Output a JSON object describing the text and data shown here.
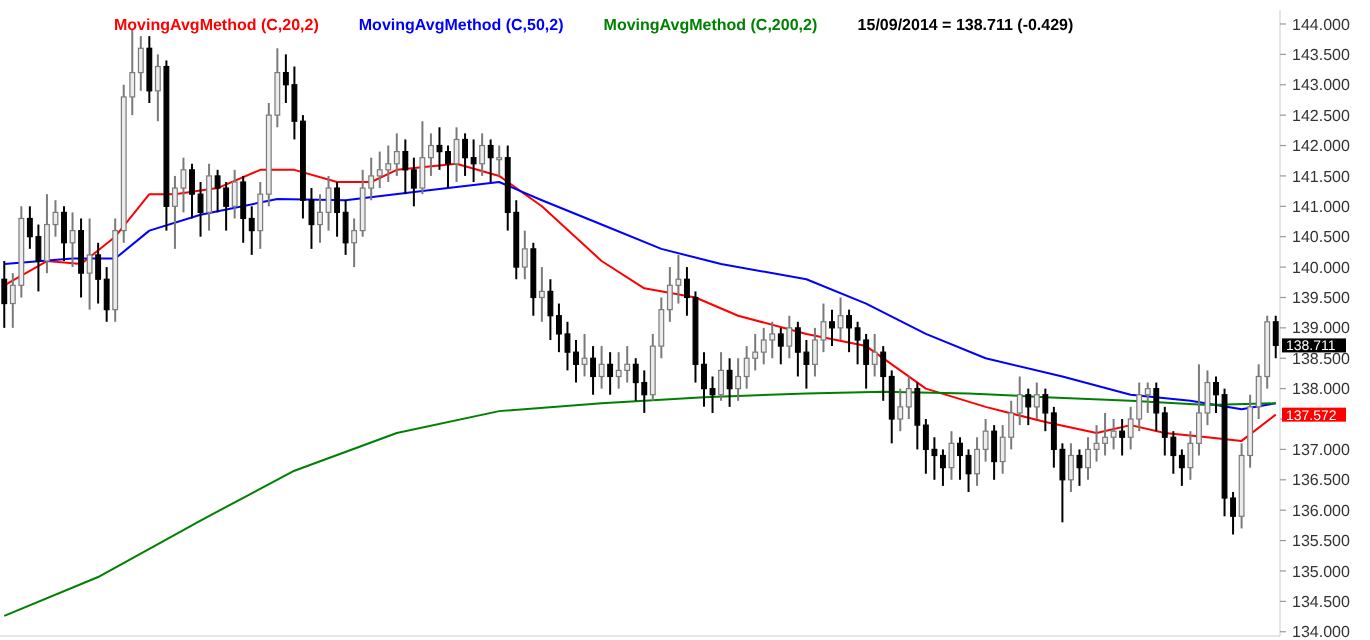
{
  "chart_data": {
    "type": "candlestick",
    "legend": "top",
    "tick_labels": "y",
    "grid": false,
    "ylim": [
      133.93,
      144.23
    ],
    "yticks": [
      {
        "value": 134,
        "label": "134.000"
      },
      {
        "value": 134.5,
        "label": "134.500"
      },
      {
        "value": 135,
        "label": "135.000"
      },
      {
        "value": 135.5,
        "label": "135.500"
      },
      {
        "value": 136,
        "label": "136.000"
      },
      {
        "value": 136.5,
        "label": "136.500"
      },
      {
        "value": 137,
        "label": "137.000"
      },
      {
        "value": 137.5,
        "label": null
      },
      {
        "value": 138,
        "label": "138.000"
      },
      {
        "value": 138.5,
        "label": "138.500"
      },
      {
        "value": 139,
        "label": "139.000"
      },
      {
        "value": 139.5,
        "label": "139.500"
      },
      {
        "value": 140,
        "label": "140.000"
      },
      {
        "value": 140.5,
        "label": "140.500"
      },
      {
        "value": 141,
        "label": "141.000"
      },
      {
        "value": 141.5,
        "label": "141.500"
      },
      {
        "value": 142,
        "label": "142.000"
      },
      {
        "value": 142.5,
        "label": "142.500"
      },
      {
        "value": 143,
        "label": "143.000"
      },
      {
        "value": 143.5,
        "label": "143.500"
      },
      {
        "value": 144,
        "label": "144.000"
      }
    ],
    "annotations": [
      "15/09/2014 = 138.711 (-0.429)",
      "138.711",
      "137.572"
    ],
    "categories": [
      null,
      null,
      null,
      null,
      null,
      null,
      null,
      null,
      null,
      null,
      null,
      null,
      null,
      null,
      null,
      null,
      null,
      null,
      null,
      null,
      null,
      null,
      null,
      null,
      null,
      null,
      null,
      null,
      null,
      null,
      null,
      null,
      null,
      null,
      null,
      null,
      null,
      null,
      null,
      null,
      null,
      null,
      null,
      null,
      null,
      null,
      null,
      null,
      null,
      null,
      null,
      null,
      null,
      null,
      null,
      null,
      null,
      null,
      null,
      null,
      null,
      null,
      null,
      null,
      null,
      null,
      null,
      null,
      null,
      null,
      null,
      null,
      null,
      null,
      null,
      null,
      null,
      null,
      null,
      null,
      null,
      null,
      null,
      null,
      null,
      null,
      null,
      null,
      null,
      null,
      null,
      null,
      null,
      null,
      null,
      null,
      null,
      null,
      null,
      null,
      null,
      null,
      null,
      null,
      null,
      null,
      null,
      null,
      null,
      null,
      null,
      null,
      null,
      null,
      null,
      null,
      null,
      null,
      null,
      null,
      null,
      null,
      null,
      null,
      null,
      null,
      null,
      null,
      null,
      null,
      null,
      null,
      null,
      null,
      null,
      null,
      null,
      null,
      null,
      null,
      null,
      null,
      null,
      null,
      null,
      null,
      null,
      null,
      null,
      null
    ],
    "ohlc": [
      [
        139.8,
        140.1,
        139.0,
        139.4
      ],
      [
        139.4,
        139.9,
        139.0,
        139.7
      ],
      [
        139.7,
        141.0,
        139.5,
        140.8
      ],
      [
        140.8,
        141.0,
        140.3,
        140.5
      ],
      [
        140.5,
        140.7,
        139.6,
        140.1
      ],
      [
        140.1,
        141.2,
        139.9,
        140.7
      ],
      [
        140.7,
        141.1,
        140.5,
        140.9
      ],
      [
        140.9,
        141.0,
        140.1,
        140.4
      ],
      [
        140.4,
        140.9,
        140.0,
        140.6
      ],
      [
        140.6,
        140.8,
        139.5,
        139.9
      ],
      [
        139.9,
        140.8,
        139.3,
        140.2
      ],
      [
        140.2,
        140.4,
        139.4,
        139.8
      ],
      [
        139.8,
        140.0,
        139.1,
        139.3
      ],
      [
        139.3,
        140.8,
        139.1,
        140.6
      ],
      [
        140.6,
        143.0,
        140.4,
        142.8
      ],
      [
        142.8,
        143.9,
        142.5,
        143.2
      ],
      [
        143.2,
        143.8,
        142.9,
        143.6
      ],
      [
        143.6,
        143.8,
        142.7,
        142.9
      ],
      [
        142.9,
        143.5,
        142.4,
        143.3
      ],
      [
        143.3,
        143.4,
        140.6,
        141.0
      ],
      [
        141.0,
        141.5,
        140.3,
        141.3
      ],
      [
        141.3,
        141.8,
        140.9,
        141.6
      ],
      [
        141.6,
        141.7,
        140.8,
        141.2
      ],
      [
        141.2,
        141.4,
        140.5,
        140.9
      ],
      [
        140.9,
        141.7,
        140.6,
        141.5
      ],
      [
        141.5,
        141.6,
        140.9,
        141.3
      ],
      [
        141.3,
        141.4,
        140.6,
        141.0
      ],
      [
        141.0,
        141.6,
        140.8,
        141.4
      ],
      [
        141.4,
        141.5,
        140.4,
        140.8
      ],
      [
        140.8,
        141.0,
        140.2,
        140.6
      ],
      [
        140.6,
        141.4,
        140.3,
        141.2
      ],
      [
        141.2,
        142.7,
        141.0,
        142.5
      ],
      [
        142.5,
        143.6,
        142.3,
        143.2
      ],
      [
        143.2,
        143.5,
        142.7,
        143.0
      ],
      [
        143.0,
        143.3,
        142.1,
        142.4
      ],
      [
        142.4,
        142.5,
        140.8,
        141.1
      ],
      [
        141.1,
        141.3,
        140.3,
        140.7
      ],
      [
        140.7,
        141.2,
        140.4,
        140.9
      ],
      [
        140.9,
        141.5,
        140.6,
        141.3
      ],
      [
        141.3,
        141.4,
        140.5,
        140.9
      ],
      [
        140.9,
        141.1,
        140.2,
        140.4
      ],
      [
        140.4,
        140.8,
        140.0,
        140.6
      ],
      [
        140.6,
        141.6,
        140.5,
        141.3
      ],
      [
        141.3,
        141.8,
        141.1,
        141.5
      ],
      [
        141.5,
        141.9,
        141.3,
        141.6
      ],
      [
        141.6,
        142.0,
        141.4,
        141.7
      ],
      [
        141.7,
        142.2,
        141.5,
        141.9
      ],
      [
        141.9,
        142.1,
        141.2,
        141.6
      ],
      [
        141.6,
        141.8,
        141.0,
        141.3
      ],
      [
        141.3,
        142.4,
        141.2,
        141.8
      ],
      [
        141.8,
        142.2,
        141.5,
        142.0
      ],
      [
        142.0,
        142.3,
        141.6,
        141.9
      ],
      [
        141.9,
        142.0,
        141.3,
        141.7
      ],
      [
        141.7,
        142.3,
        141.4,
        142.1
      ],
      [
        142.1,
        142.2,
        141.5,
        141.8
      ],
      [
        141.8,
        142.1,
        141.4,
        141.7
      ],
      [
        141.7,
        142.2,
        141.5,
        142.0
      ],
      [
        142.0,
        142.1,
        141.4,
        141.8
      ],
      [
        141.8,
        142.0,
        141.5,
        141.8
      ],
      [
        141.8,
        142.0,
        140.6,
        140.9
      ],
      [
        140.9,
        141.1,
        139.8,
        140.0
      ],
      [
        140.0,
        140.6,
        139.8,
        140.3
      ],
      [
        140.3,
        140.4,
        139.2,
        139.5
      ],
      [
        139.5,
        140.0,
        139.1,
        139.6
      ],
      [
        139.6,
        139.8,
        138.8,
        139.2
      ],
      [
        139.2,
        139.4,
        138.6,
        138.9
      ],
      [
        138.9,
        139.1,
        138.3,
        138.6
      ],
      [
        138.6,
        138.8,
        138.1,
        138.4
      ],
      [
        138.4,
        138.9,
        138.2,
        138.5
      ],
      [
        138.5,
        138.7,
        137.9,
        138.2
      ],
      [
        138.2,
        138.7,
        138.0,
        138.4
      ],
      [
        138.4,
        138.6,
        137.9,
        138.2
      ],
      [
        138.2,
        138.6,
        138.0,
        138.3
      ],
      [
        138.3,
        138.7,
        138.1,
        138.4
      ],
      [
        138.4,
        138.5,
        137.8,
        138.1
      ],
      [
        138.1,
        138.3,
        137.6,
        137.9
      ],
      [
        137.9,
        138.9,
        137.8,
        138.7
      ],
      [
        138.7,
        139.5,
        138.5,
        139.3
      ],
      [
        139.3,
        140.0,
        139.1,
        139.7
      ],
      [
        139.7,
        140.2,
        139.4,
        139.8
      ],
      [
        139.8,
        140.0,
        139.2,
        139.5
      ],
      [
        139.5,
        139.6,
        138.1,
        138.4
      ],
      [
        138.4,
        138.6,
        137.7,
        138.0
      ],
      [
        138.0,
        138.2,
        137.6,
        137.9
      ],
      [
        137.9,
        138.6,
        137.8,
        138.3
      ],
      [
        138.3,
        138.5,
        137.7,
        138.0
      ],
      [
        138.0,
        138.5,
        137.8,
        138.2
      ],
      [
        138.2,
        138.7,
        138.0,
        138.5
      ],
      [
        138.5,
        138.9,
        138.3,
        138.6
      ],
      [
        138.6,
        139.0,
        138.4,
        138.8
      ],
      [
        138.8,
        139.1,
        138.5,
        138.9
      ],
      [
        138.9,
        139.0,
        138.4,
        138.7
      ],
      [
        138.7,
        139.2,
        138.5,
        139.0
      ],
      [
        139.0,
        139.1,
        138.2,
        138.6
      ],
      [
        138.6,
        138.8,
        138.0,
        138.4
      ],
      [
        138.4,
        139.0,
        138.2,
        138.8
      ],
      [
        138.8,
        139.4,
        138.6,
        139.1
      ],
      [
        139.1,
        139.3,
        138.7,
        139.0
      ],
      [
        139.0,
        139.5,
        138.8,
        139.2
      ],
      [
        139.2,
        139.3,
        138.6,
        139.0
      ],
      [
        139.0,
        139.1,
        138.4,
        138.8
      ],
      [
        138.8,
        138.9,
        138.0,
        138.4
      ],
      [
        138.4,
        138.9,
        138.2,
        138.6
      ],
      [
        138.6,
        138.7,
        137.8,
        138.2
      ],
      [
        138.2,
        138.3,
        137.1,
        137.5
      ],
      [
        137.5,
        138.0,
        137.3,
        137.7
      ],
      [
        137.7,
        138.2,
        137.5,
        138.0
      ],
      [
        138.0,
        138.1,
        137.0,
        137.4
      ],
      [
        137.4,
        137.5,
        136.6,
        137.0
      ],
      [
        137.0,
        137.2,
        136.5,
        136.9
      ],
      [
        136.9,
        137.0,
        136.4,
        136.7
      ],
      [
        136.7,
        137.3,
        136.5,
        137.1
      ],
      [
        137.1,
        137.2,
        136.5,
        136.9
      ],
      [
        136.9,
        137.0,
        136.3,
        136.6
      ],
      [
        136.6,
        137.2,
        136.4,
        137.0
      ],
      [
        137.0,
        137.5,
        136.8,
        137.3
      ],
      [
        137.3,
        137.4,
        136.5,
        136.8
      ],
      [
        136.8,
        137.4,
        136.6,
        137.2
      ],
      [
        137.2,
        137.8,
        137.0,
        137.6
      ],
      [
        137.6,
        138.2,
        137.4,
        137.9
      ],
      [
        137.9,
        138.0,
        137.4,
        137.7
      ],
      [
        137.7,
        138.1,
        137.5,
        137.9
      ],
      [
        137.9,
        138.0,
        137.3,
        137.6
      ],
      [
        137.6,
        137.7,
        136.7,
        137.0
      ],
      [
        137.0,
        137.1,
        135.8,
        136.5
      ],
      [
        136.5,
        137.1,
        136.3,
        136.9
      ],
      [
        136.9,
        137.0,
        136.4,
        136.7
      ],
      [
        136.7,
        137.2,
        136.5,
        137.0
      ],
      [
        137.0,
        137.4,
        136.8,
        137.1
      ],
      [
        137.1,
        137.6,
        136.9,
        137.2
      ],
      [
        137.2,
        137.5,
        137.0,
        137.3
      ],
      [
        137.3,
        137.5,
        136.9,
        137.2
      ],
      [
        137.2,
        137.7,
        137.0,
        137.5
      ],
      [
        137.5,
        138.1,
        137.3,
        137.9
      ],
      [
        137.9,
        138.1,
        137.6,
        138.0
      ],
      [
        138.0,
        138.1,
        137.3,
        137.6
      ],
      [
        137.6,
        137.7,
        136.9,
        137.2
      ],
      [
        137.2,
        137.3,
        136.6,
        136.9
      ],
      [
        136.9,
        137.0,
        136.4,
        136.7
      ],
      [
        136.7,
        137.3,
        136.5,
        137.1
      ],
      [
        137.1,
        138.4,
        136.9,
        137.6
      ],
      [
        137.6,
        138.3,
        137.4,
        138.1
      ],
      [
        138.1,
        138.2,
        137.6,
        137.9
      ],
      [
        137.9,
        138.0,
        135.9,
        136.2
      ],
      [
        136.2,
        136.3,
        135.6,
        135.9
      ],
      [
        135.9,
        137.1,
        135.7,
        136.9
      ],
      [
        136.9,
        137.9,
        136.7,
        137.7
      ],
      [
        137.7,
        138.4,
        137.5,
        138.2
      ],
      [
        138.2,
        139.2,
        138.0,
        139.1
      ],
      [
        139.1,
        139.2,
        138.5,
        138.711
      ]
    ],
    "series": [
      {
        "name": "MovingAvgMethod (C,20,2)",
        "type": "line",
        "color": "#ff0000",
        "values": [
          139.7,
          null,
          null,
          null,
          null,
          140.1,
          null,
          null,
          null,
          140.05,
          null,
          null,
          null,
          140.5,
          null,
          null,
          null,
          141.2,
          null,
          null,
          141.2,
          null,
          null,
          null,
          null,
          141.3,
          null,
          null,
          null,
          null,
          141.6,
          null,
          null,
          null,
          141.6,
          null,
          null,
          null,
          null,
          141.4,
          null,
          null,
          null,
          141.4,
          null,
          null,
          141.6,
          null,
          null,
          null,
          null,
          null,
          null,
          141.7,
          null,
          null,
          null,
          null,
          141.5,
          null,
          null,
          null,
          null,
          141.0,
          null,
          null,
          null,
          null,
          null,
          null,
          140.1,
          null,
          null,
          null,
          null,
          139.65,
          null,
          null,
          null,
          null,
          null,
          139.5,
          null,
          null,
          null,
          null,
          139.2,
          null,
          null,
          null,
          null,
          null,
          null,
          null,
          138.9,
          null,
          null,
          null,
          null,
          null,
          null,
          138.7,
          null,
          null,
          null,
          null,
          null,
          null,
          138.0,
          null,
          null,
          null,
          null,
          null,
          null,
          137.7,
          null,
          null,
          null,
          null,
          null,
          null,
          137.45,
          null,
          null,
          null,
          null,
          null,
          137.27,
          null,
          null,
          null,
          137.4,
          null,
          null,
          null,
          137.27,
          null,
          null,
          null,
          null,
          137.2,
          null,
          null,
          null,
          137.14,
          null,
          null,
          null,
          137.572
        ]
      },
      {
        "name": "MovingAvgMethod (C,50,2)",
        "type": "line",
        "color": "#0000ff",
        "values": [
          140.05,
          null,
          null,
          null,
          null,
          null,
          null,
          null,
          140.14,
          null,
          null,
          null,
          null,
          140.14,
          null,
          null,
          null,
          140.6,
          null,
          null,
          null,
          null,
          null,
          140.86,
          null,
          null,
          null,
          null,
          null,
          null,
          null,
          null,
          141.12,
          null,
          null,
          null,
          null,
          null,
          null,
          null,
          141.1,
          null,
          null,
          null,
          null,
          null,
          null,
          null,
          null,
          141.25,
          null,
          null,
          null,
          null,
          null,
          null,
          null,
          null,
          141.4,
          null,
          null,
          null,
          null,
          141.1,
          null,
          null,
          null,
          null,
          null,
          null,
          140.7,
          null,
          null,
          null,
          null,
          null,
          null,
          140.3,
          null,
          null,
          null,
          null,
          null,
          null,
          140.05,
          null,
          null,
          null,
          null,
          null,
          null,
          null,
          null,
          null,
          139.8,
          null,
          null,
          null,
          null,
          null,
          null,
          139.4,
          null,
          null,
          null,
          null,
          null,
          null,
          138.9,
          null,
          null,
          null,
          null,
          null,
          null,
          138.5,
          null,
          null,
          null,
          null,
          null,
          null,
          null,
          null,
          138.2,
          null,
          null,
          null,
          null,
          null,
          null,
          null,
          137.9,
          null,
          null,
          null,
          null,
          null,
          null,
          137.8,
          null,
          null,
          null,
          null,
          null,
          137.66,
          null,
          null,
          null,
          137.76
        ]
      },
      {
        "name": "MovingAvgMethod (C,200,2)",
        "type": "line",
        "color": "#008000",
        "values": [
          134.26,
          null,
          null,
          null,
          null,
          null,
          null,
          null,
          null,
          null,
          null,
          134.9,
          null,
          null,
          null,
          null,
          null,
          null,
          null,
          null,
          null,
          null,
          null,
          135.83,
          null,
          null,
          null,
          null,
          null,
          null,
          null,
          null,
          null,
          null,
          136.65,
          null,
          null,
          null,
          null,
          null,
          null,
          null,
          null,
          null,
          null,
          null,
          137.27,
          null,
          null,
          null,
          null,
          null,
          null,
          null,
          null,
          null,
          null,
          null,
          137.63,
          null,
          null,
          null,
          null,
          null,
          null,
          null,
          null,
          null,
          null,
          null,
          137.76,
          null,
          null,
          null,
          null,
          null,
          null,
          null,
          null,
          null,
          null,
          null,
          137.86,
          null,
          null,
          null,
          null,
          null,
          null,
          null,
          null,
          null,
          null,
          null,
          137.92,
          null,
          null,
          null,
          null,
          null,
          null,
          null,
          null,
          137.95,
          null,
          null,
          null,
          null,
          null,
          null,
          null,
          null,
          null,
          137.92,
          null,
          null,
          null,
          null,
          null,
          null,
          null,
          null,
          137.86,
          null,
          null,
          null,
          null,
          null,
          null,
          null,
          null,
          null,
          137.8,
          null,
          null,
          null,
          null,
          null,
          null,
          null,
          null,
          137.73,
          null,
          null,
          null,
          null,
          null,
          null,
          null,
          137.76
        ]
      }
    ]
  }
}
